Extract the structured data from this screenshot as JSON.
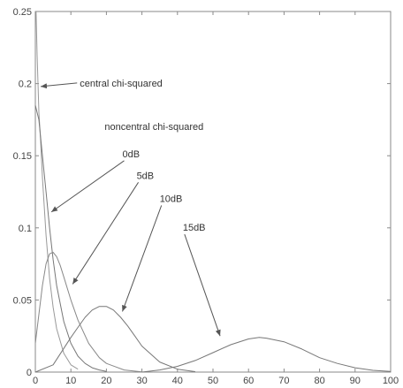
{
  "chart_data": {
    "type": "line",
    "xlim": [
      0,
      100
    ],
    "ylim": [
      0,
      0.25
    ],
    "x_ticks": [
      0,
      10,
      20,
      30,
      40,
      50,
      60,
      70,
      80,
      90,
      100
    ],
    "x_tick_labels": [
      "0",
      "10",
      "20",
      "30",
      "40",
      "50",
      "60",
      "70",
      "80",
      "90",
      "100"
    ],
    "y_ticks": [
      0,
      0.05,
      0.1,
      0.15,
      0.2,
      0.25
    ],
    "y_tick_labels": [
      "0",
      "0.05",
      "0.1",
      "0.15",
      "0.2",
      "0.25"
    ],
    "grid": false,
    "series": [
      {
        "name": "central chi-squared",
        "x": [
          0.2,
          0.5,
          1,
          1.5,
          2,
          3,
          4,
          5,
          6,
          8,
          10,
          12
        ],
        "y": [
          0.25,
          0.22,
          0.18,
          0.16,
          0.135,
          0.095,
          0.065,
          0.045,
          0.03,
          0.013,
          0.005,
          0.002
        ],
        "color": "#999999"
      },
      {
        "name": "0dB",
        "x": [
          0,
          1,
          2,
          3,
          4,
          5,
          6,
          8,
          10,
          12,
          14,
          16,
          18,
          20
        ],
        "y": [
          0.185,
          0.175,
          0.15,
          0.125,
          0.1,
          0.078,
          0.06,
          0.035,
          0.02,
          0.011,
          0.006,
          0.003,
          0.0015,
          0.0005
        ],
        "color": "#777777"
      },
      {
        "name": "5dB",
        "x": [
          0,
          1,
          2,
          3,
          4,
          5,
          6,
          7,
          8,
          10,
          12,
          15,
          18,
          20,
          25,
          30
        ],
        "y": [
          0.02,
          0.04,
          0.06,
          0.075,
          0.082,
          0.083,
          0.08,
          0.074,
          0.066,
          0.05,
          0.036,
          0.02,
          0.01,
          0.006,
          0.0015,
          0.0002
        ],
        "color": "#888888"
      },
      {
        "name": "10dB",
        "x": [
          0,
          5,
          10,
          12,
          14,
          16,
          18,
          20,
          22,
          24,
          26,
          28,
          30,
          35,
          40,
          45
        ],
        "y": [
          0.0,
          0.005,
          0.024,
          0.031,
          0.038,
          0.043,
          0.0455,
          0.0455,
          0.043,
          0.038,
          0.032,
          0.025,
          0.018,
          0.007,
          0.002,
          0.0003
        ],
        "color": "#777777"
      },
      {
        "name": "15dB",
        "x": [
          30,
          35,
          40,
          45,
          50,
          55,
          60,
          63,
          65,
          70,
          75,
          80,
          85,
          90,
          95,
          100
        ],
        "y": [
          0.0,
          0.0015,
          0.004,
          0.008,
          0.0135,
          0.019,
          0.023,
          0.024,
          0.0235,
          0.021,
          0.016,
          0.01,
          0.006,
          0.003,
          0.0012,
          0.0004
        ],
        "color": "#777777"
      }
    ],
    "annotations": [
      {
        "text": "central chi-squared",
        "x": 12.5,
        "y": 0.198,
        "arrow_to": [
          1.5,
          0.198
        ]
      },
      {
        "text": "noncentral chi-squared",
        "x": 19.5,
        "y": 0.168,
        "arrow_to": null
      },
      {
        "text": "0dB",
        "x": 24.5,
        "y": 0.149,
        "arrow_to": [
          4.5,
          0.111
        ]
      },
      {
        "text": "5dB",
        "x": 28.5,
        "y": 0.134,
        "arrow_to": [
          10.5,
          0.061
        ]
      },
      {
        "text": "10dB",
        "x": 35,
        "y": 0.118,
        "arrow_to": [
          24.5,
          0.042
        ]
      },
      {
        "text": "15dB",
        "x": 41.5,
        "y": 0.098,
        "arrow_to": [
          52,
          0.025
        ]
      }
    ]
  }
}
